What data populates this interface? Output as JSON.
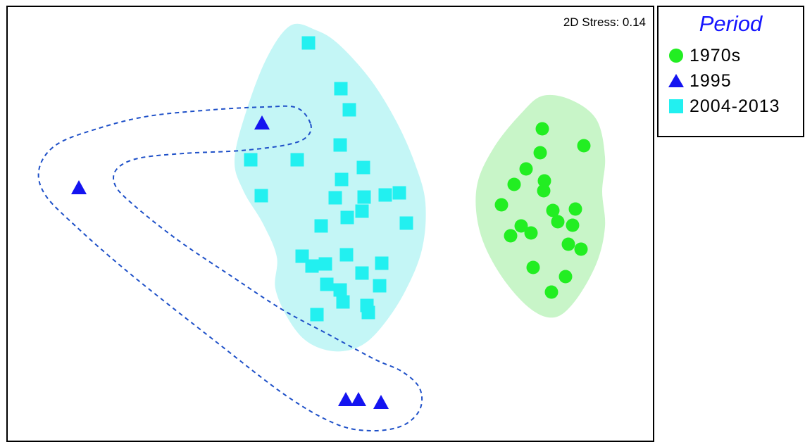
{
  "chart_data": {
    "type": "scatter",
    "title": "",
    "xlabel": "",
    "ylabel": "",
    "stress_label": "2D Stress: 0.14",
    "legend": {
      "title": "Period",
      "placement": "right",
      "title_color": "#1515FF"
    },
    "xlim": [
      0,
      920
    ],
    "ylim": [
      0,
      610
    ],
    "series": [
      {
        "name": "1970s",
        "marker": "circle",
        "color": "#22EE22",
        "hull_color": "#C8F5C8",
        "points": [
          [
            759,
            173
          ],
          [
            818,
            197
          ],
          [
            756,
            207
          ],
          [
            736,
            230
          ],
          [
            762,
            247
          ],
          [
            719,
            252
          ],
          [
            761,
            261
          ],
          [
            701,
            281
          ],
          [
            774,
            289
          ],
          [
            806,
            287
          ],
          [
            781,
            305
          ],
          [
            802,
            310
          ],
          [
            729,
            311
          ],
          [
            743,
            321
          ],
          [
            714,
            325
          ],
          [
            796,
            337
          ],
          [
            814,
            344
          ],
          [
            746,
            370
          ],
          [
            792,
            383
          ],
          [
            772,
            405
          ]
        ]
      },
      {
        "name": "1995",
        "marker": "triangle",
        "color": "#1414F0",
        "outline": "dashed",
        "outline_color": "#1E50C8",
        "points": [
          [
            361,
            165
          ],
          [
            101,
            257
          ],
          [
            480,
            558
          ],
          [
            498,
            558
          ],
          [
            530,
            562
          ]
        ]
      },
      {
        "name": "2004-2013",
        "marker": "square",
        "color": "#22F0F0",
        "hull_color": "#C4F6F6",
        "points": [
          [
            427,
            51
          ],
          [
            473,
            116
          ],
          [
            485,
            146
          ],
          [
            472,
            196
          ],
          [
            345,
            217
          ],
          [
            411,
            217
          ],
          [
            505,
            228
          ],
          [
            474,
            245
          ],
          [
            360,
            268
          ],
          [
            506,
            270
          ],
          [
            536,
            267
          ],
          [
            556,
            264
          ],
          [
            465,
            271
          ],
          [
            503,
            290
          ],
          [
            482,
            299
          ],
          [
            445,
            311
          ],
          [
            566,
            307
          ],
          [
            418,
            354
          ],
          [
            481,
            352
          ],
          [
            432,
            368
          ],
          [
            451,
            365
          ],
          [
            531,
            364
          ],
          [
            503,
            378
          ],
          [
            453,
            394
          ],
          [
            528,
            396
          ],
          [
            472,
            402
          ],
          [
            476,
            419
          ],
          [
            510,
            424
          ],
          [
            512,
            434
          ],
          [
            439,
            437
          ]
        ]
      }
    ]
  }
}
